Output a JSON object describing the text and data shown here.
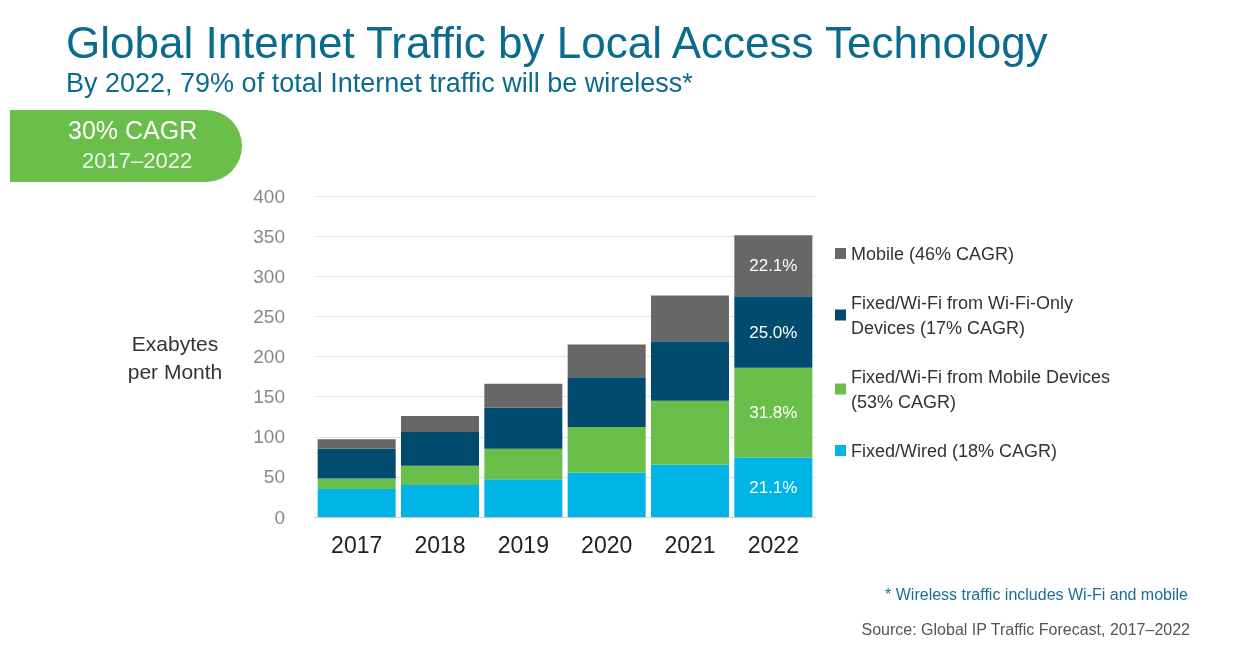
{
  "chart_data": {
    "type": "bar",
    "stacked": true,
    "title": "Global Internet Traffic by Local Access Technology",
    "subtitle": "By 2022, 79% of total Internet traffic will be wireless*",
    "ylabel": "Exabytes per Month",
    "categories": [
      "2017",
      "2018",
      "2019",
      "2020",
      "2021",
      "2022"
    ],
    "series": [
      {
        "name": "Fixed/Wired (18% CAGR)",
        "color": "#00b5e6",
        "values": [
          35,
          40,
          47,
          55,
          65,
          74
        ]
      },
      {
        "name": "Fixed/Wi-Fi from Mobile Devices (53% CAGR)",
        "color": "#6abf4b",
        "values": [
          13,
          24,
          38,
          57,
          80,
          112
        ]
      },
      {
        "name": "Fixed/Wi-Fi from Wi-Fi-Only Devices (17% CAGR)",
        "color": "#004b6e",
        "values": [
          37,
          42,
          51,
          62,
          74,
          89
        ]
      },
      {
        "name": "Mobile (46% CAGR)",
        "color": "#676767",
        "values": [
          12,
          20,
          30,
          41,
          57,
          76
        ]
      }
    ],
    "ylim": [
      0,
      400
    ],
    "yticks": [
      0,
      50,
      100,
      150,
      200,
      250,
      300,
      350,
      400
    ],
    "grid": "y",
    "legend": "right",
    "annotations": [
      "30% CAGR",
      "2017–2022",
      "* Wireless traffic includes Wi-Fi and mobile",
      "Source: Global IP Traffic Forecast, 2017–2022",
      "21.1%",
      "31.8%",
      "25.0%",
      "22.1%"
    ]
  }
}
